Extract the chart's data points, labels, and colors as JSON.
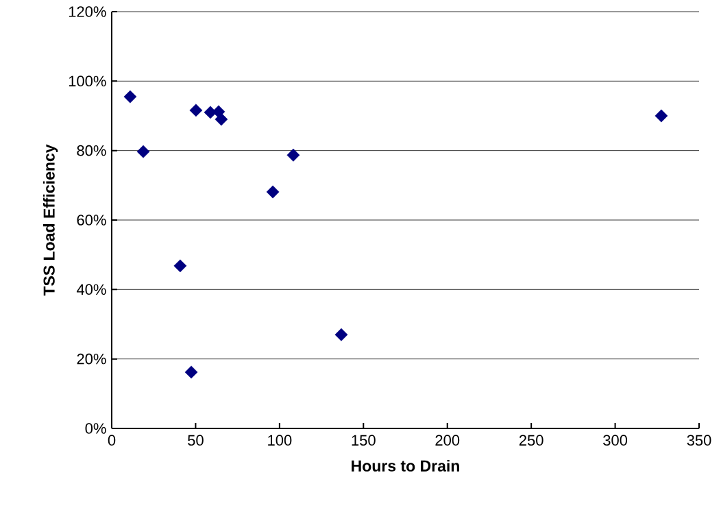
{
  "chart_data": {
    "type": "scatter",
    "xlabel": "Hours to Drain",
    "ylabel": "TSS Load Efficiency",
    "x": [
      11,
      18.8,
      40.8,
      47.4,
      50.2,
      58.8,
      63.7,
      65.3,
      96,
      108.2,
      136.8,
      327.5
    ],
    "values": [
      95.5,
      79.7,
      46.8,
      16.2,
      91.6,
      91.0,
      91.2,
      89.0,
      68.1,
      78.7,
      27.0,
      90.0
    ],
    "color": "#000080",
    "marker": "diamond",
    "grid": "y",
    "xlim": [
      0,
      350
    ],
    "xticks": [
      0,
      50,
      100,
      150,
      200,
      250,
      300,
      350
    ],
    "ylim": [
      0,
      120
    ],
    "yticks": [
      {
        "value": 0,
        "label": "0%"
      },
      {
        "value": 20,
        "label": "20%"
      },
      {
        "value": 40,
        "label": "40%"
      },
      {
        "value": 60,
        "label": "60%"
      },
      {
        "value": 80,
        "label": "80%"
      },
      {
        "value": 100,
        "label": "100%"
      },
      {
        "value": 120,
        "label": "120%"
      }
    ]
  }
}
